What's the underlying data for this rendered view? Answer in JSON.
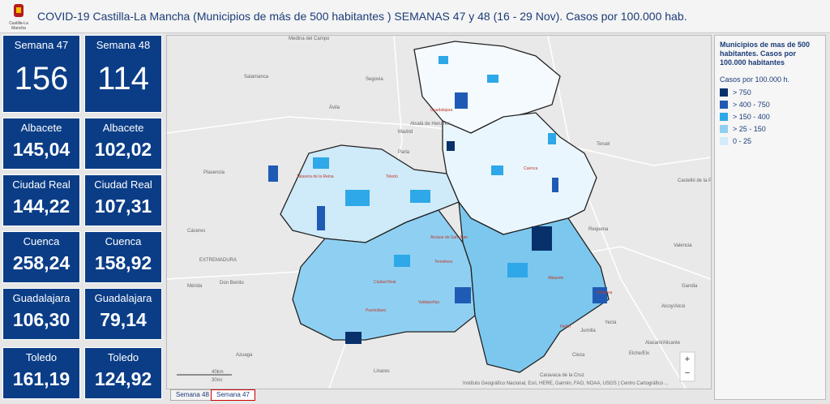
{
  "header": {
    "logo_text": "Castilla-La Mancha",
    "title": "COVID-19 Castilla-La Mancha (Municipios de más de 500 habitantes ) SEMANAS 47 y 48 (16 - 29 Nov). Casos por 100.000 hab."
  },
  "cards": [
    [
      {
        "title": "Semana 47",
        "value": "156"
      },
      {
        "title": "Semana 48",
        "value": "114"
      }
    ],
    [
      {
        "title": "Albacete",
        "value": "145,04"
      },
      {
        "title": "Albacete",
        "value": "102,02"
      }
    ],
    [
      {
        "title": "Ciudad Real",
        "value": "144,22"
      },
      {
        "title": "Ciudad Real",
        "value": "107,31"
      }
    ],
    [
      {
        "title": "Cuenca",
        "value": "258,24"
      },
      {
        "title": "Cuenca",
        "value": "158,92"
      }
    ],
    [
      {
        "title": "Guadalajara",
        "value": "106,30"
      },
      {
        "title": "Guadalajara",
        "value": "79,14"
      }
    ],
    [
      {
        "title": "Toledo",
        "value": "161,19"
      },
      {
        "title": "Toledo",
        "value": "124,92"
      }
    ]
  ],
  "map": {
    "labels": [
      "Medina del Campo",
      "Salamanca",
      "Segovia",
      "Ávila",
      "Alcalá de Henares",
      "Madrid",
      "Parla",
      "Teruel",
      "Plasencia",
      "Cáceres",
      "Requena",
      "EXTREMADURA",
      "Mérida",
      "Don Benito",
      "Castelló de la Plana/Castellón de la Plana",
      "Valencia",
      "Gandia",
      "Alcoy/Alcoi",
      "Alacant/Alicante",
      "Elche/Elx",
      "Yecla",
      "Jumilla",
      "Cieza",
      "Caravaca de la Cruz",
      "Linares",
      "Azuaga",
      "Guadalajara",
      "Cuenca",
      "Toledo",
      "Talavera de la Reina",
      "Alcázar de San Juan",
      "Tomelloso",
      "Valdepeñas",
      "Puertollano",
      "Ciudad Real",
      "Albacete",
      "Almansa",
      "Hellín"
    ],
    "attribution": "Instituto Geográfico Nacional, Esri, HERE, Garmin, FAO, NOAA, USGS | Centro Cartográfico ...",
    "scale_km": "40km",
    "scale_mi": "30mi",
    "zoom_in": "+",
    "zoom_out": "−"
  },
  "tabs": [
    "Semana 48",
    "Semana 47"
  ],
  "legend": {
    "title": "Municipios de mas de 500 habitantes. Casos por 100.000 habitantes",
    "subtitle": "Casos por 100.000 h.",
    "items": [
      {
        "label": "> 750",
        "color": "#08306b"
      },
      {
        "label": "> 400 - 750",
        "color": "#1f5bb5"
      },
      {
        "label": "> 150 - 400",
        "color": "#2ea8e8"
      },
      {
        "label": "> 25 - 150",
        "color": "#8fd0f2"
      },
      {
        "label": "0 - 25",
        "color": "#d3ebf9"
      }
    ]
  }
}
